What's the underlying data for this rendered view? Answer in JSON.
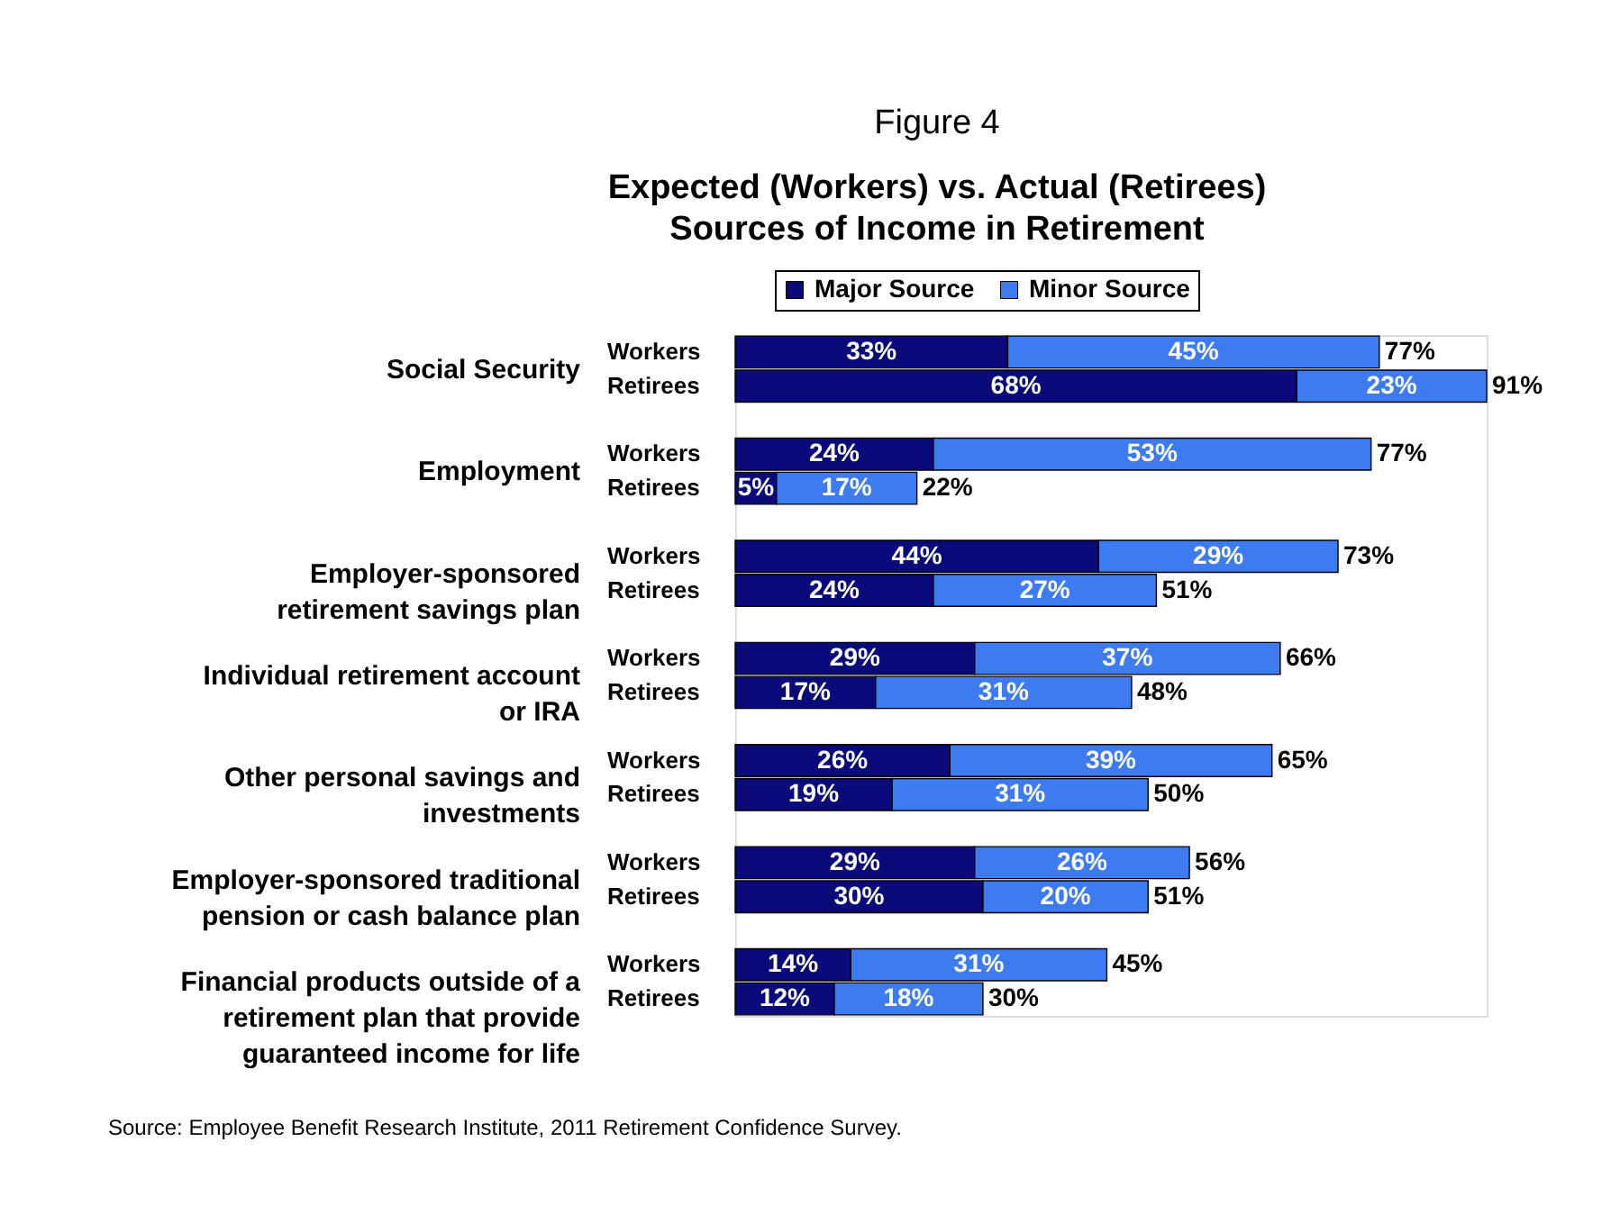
{
  "chart_data": {
    "type": "bar",
    "orientation": "horizontal",
    "stacked": true,
    "title": "Figure 4",
    "subtitle": "Expected (Workers) vs. Actual (Retirees)\nSources of Income in Retirement",
    "categories": [
      "Workers",
      "Retirees",
      "Workers",
      "Retirees",
      "Workers",
      "Retirees",
      "Workers",
      "Retirees",
      "Workers",
      "Retirees",
      "Workers",
      "Retirees",
      "Workers",
      "Retirees"
    ],
    "series": [
      {
        "name": "Major Source",
        "color": "#0a0a7a",
        "values": [
          33,
          68,
          24,
          5,
          44,
          24,
          29,
          17,
          26,
          19,
          29,
          30,
          14,
          12
        ],
        "value_labels": [
          "33%",
          "68%",
          "24%",
          "5%",
          "44%",
          "24%",
          "29%",
          "17%",
          "26%",
          "19%",
          "29%",
          "30%",
          "14%",
          "12%"
        ]
      },
      {
        "name": "Minor Source",
        "color": "#3d7cf0",
        "values": [
          45,
          23,
          53,
          17,
          29,
          27,
          37,
          31,
          39,
          31,
          26,
          20,
          31,
          18
        ],
        "value_labels": [
          "45%",
          "23%",
          "53%",
          "17%",
          "29%",
          "27%",
          "37%",
          "31%",
          "39%",
          "31%",
          "26%",
          "20%",
          "31%",
          "18%"
        ]
      }
    ],
    "totals": [
      "77%",
      "91%",
      "77%",
      "22%",
      "73%",
      "51%",
      "66%",
      "48%",
      "65%",
      "50%",
      "56%",
      "51%",
      "45%",
      "30%"
    ],
    "legend": "top",
    "annotations": [
      "Social Security",
      "Employment",
      "Employer-sponsored\nretirement savings plan",
      "Individual retirement account\nor IRA",
      "Other personal savings and\ninvestments",
      "Employer-sponsored traditional\npension or cash balance plan",
      "Financial products outside of a\nretirement plan that provide\nguaranteed income for life",
      "Source:  Employee Benefit Research Institute, 2011 Retirement Confidence Survey."
    ]
  }
}
